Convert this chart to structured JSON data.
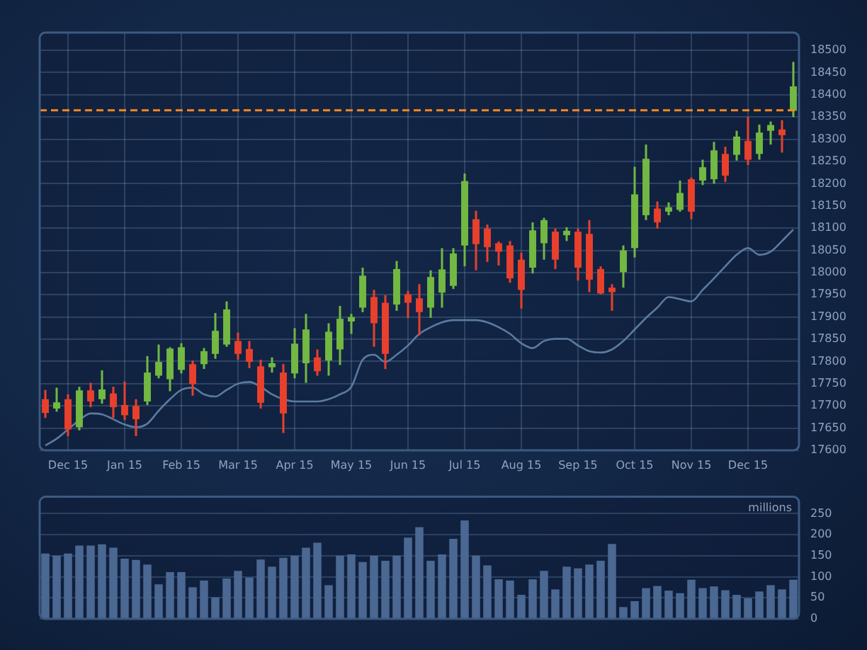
{
  "chart_data": [
    {
      "type": "candlestick",
      "categories": [
        null,
        null,
        "Dec 15",
        null,
        null,
        null,
        null,
        "Jan 15",
        null,
        null,
        null,
        null,
        "Feb 15",
        null,
        null,
        null,
        null,
        "Mar 15",
        null,
        null,
        null,
        null,
        "Apr 15",
        null,
        null,
        null,
        null,
        "May 15",
        null,
        null,
        null,
        null,
        "Jun 15",
        null,
        null,
        null,
        null,
        "Jul 15",
        null,
        null,
        null,
        null,
        "Aug 15",
        null,
        null,
        null,
        null,
        "Sep 15",
        null,
        null,
        null,
        null,
        "Oct 15",
        null,
        null,
        null,
        null,
        "Nov 15",
        null,
        null,
        null,
        null,
        "Dec 15",
        null,
        null,
        null,
        null
      ],
      "ohlc": [
        [
          17715,
          17736,
          17673,
          17684
        ],
        [
          17694,
          17741,
          17687,
          17708
        ],
        [
          17715,
          17726,
          17632,
          17647
        ],
        [
          17652,
          17743,
          17645,
          17735
        ],
        [
          17735,
          17752,
          17697,
          17710
        ],
        [
          17715,
          17780,
          17705,
          17737
        ],
        [
          17728,
          17743,
          17673,
          17697
        ],
        [
          17702,
          17755,
          17668,
          17679
        ],
        [
          17700,
          17715,
          17632,
          17670
        ],
        [
          17710,
          17812,
          17702,
          17775
        ],
        [
          17768,
          17838,
          17762,
          17799
        ],
        [
          17760,
          17832,
          17733,
          17829
        ],
        [
          17781,
          17841,
          17773,
          17832
        ],
        [
          17794,
          17802,
          17723,
          17749
        ],
        [
          17794,
          17830,
          17783,
          17823
        ],
        [
          17817,
          17909,
          17806,
          17869
        ],
        [
          17838,
          17935,
          17833,
          17917
        ],
        [
          17846,
          17865,
          17804,
          17817
        ],
        [
          17828,
          17846,
          17785,
          17799
        ],
        [
          17789,
          17804,
          17694,
          17707
        ],
        [
          17787,
          17809,
          17775,
          17796
        ],
        [
          17775,
          17794,
          17639,
          17683
        ],
        [
          17773,
          17875,
          17762,
          17840
        ],
        [
          17796,
          17907,
          17752,
          17872
        ],
        [
          17809,
          17827,
          17768,
          17778
        ],
        [
          17802,
          17886,
          17768,
          17867
        ],
        [
          17827,
          17925,
          17792,
          17896
        ],
        [
          17890,
          17907,
          17862,
          17900
        ],
        [
          17921,
          18011,
          17911,
          17993
        ],
        [
          17945,
          17961,
          17833,
          17886
        ],
        [
          17932,
          17949,
          17783,
          17817
        ],
        [
          17928,
          18026,
          17914,
          18008
        ],
        [
          17951,
          17959,
          17898,
          17932
        ],
        [
          17942,
          17974,
          17859,
          17911
        ],
        [
          17921,
          18005,
          17898,
          17990
        ],
        [
          17955,
          18055,
          17921,
          18007
        ],
        [
          17970,
          18055,
          17963,
          18043
        ],
        [
          18061,
          18223,
          18014,
          18206
        ],
        [
          18120,
          18139,
          18005,
          18064
        ],
        [
          18099,
          18108,
          18024,
          18057
        ],
        [
          18066,
          18070,
          18016,
          18047
        ],
        [
          18061,
          18071,
          17977,
          17987
        ],
        [
          18029,
          18045,
          17919,
          17961
        ],
        [
          18011,
          18113,
          17998,
          18095
        ],
        [
          18066,
          18123,
          18029,
          18118
        ],
        [
          18092,
          18099,
          18008,
          18029
        ],
        [
          18084,
          18102,
          18071,
          18094
        ],
        [
          18092,
          18099,
          17982,
          18011
        ],
        [
          18087,
          18118,
          17956,
          17984
        ],
        [
          18008,
          18014,
          17951,
          17953
        ],
        [
          17966,
          17974,
          17914,
          17956
        ],
        [
          18001,
          18061,
          17966,
          18050
        ],
        [
          18055,
          18238,
          18034,
          18176
        ],
        [
          18129,
          18288,
          18118,
          18256
        ],
        [
          18144,
          18160,
          18099,
          18113
        ],
        [
          18137,
          18158,
          18129,
          18147
        ],
        [
          18141,
          18207,
          18137,
          18179
        ],
        [
          18210,
          18214,
          18120,
          18137
        ],
        [
          18207,
          18254,
          18197,
          18237
        ],
        [
          18210,
          18294,
          18200,
          18275
        ],
        [
          18267,
          18283,
          18204,
          18218
        ],
        [
          18265,
          18319,
          18252,
          18306
        ],
        [
          18296,
          18350,
          18242,
          18254
        ],
        [
          18267,
          18333,
          18254,
          18315
        ],
        [
          18319,
          18340,
          18288,
          18332
        ],
        [
          18322,
          18343,
          18270,
          18309
        ],
        [
          18364,
          18474,
          18350,
          18419
        ]
      ],
      "colors": [
        "#e8402c",
        "#72b842",
        "#e8402c",
        "#72b842",
        "#e8402c",
        "#72b842",
        "#e8402c",
        "#e8402c",
        "#e8402c",
        "#72b842",
        "#72b842",
        "#72b842",
        "#72b842",
        "#e8402c",
        "#72b842",
        "#72b842",
        "#72b842",
        "#e8402c",
        "#e8402c",
        "#e8402c",
        "#72b842",
        "#e8402c",
        "#72b842",
        "#72b842",
        "#e8402c",
        "#72b842",
        "#72b842",
        "#72b842",
        "#72b842",
        "#e8402c",
        "#e8402c",
        "#72b842",
        "#e8402c",
        "#e8402c",
        "#72b842",
        "#72b842",
        "#72b842",
        "#72b842",
        "#e8402c",
        "#e8402c",
        "#e8402c",
        "#e8402c",
        "#e8402c",
        "#72b842",
        "#72b842",
        "#e8402c",
        "#72b842",
        "#e8402c",
        "#e8402c",
        "#e8402c",
        "#e8402c",
        "#72b842",
        "#72b842",
        "#72b842",
        "#e8402c",
        "#72b842",
        "#72b842",
        "#e8402c",
        "#72b842",
        "#72b842",
        "#e8402c",
        "#72b842",
        "#e8402c",
        "#72b842",
        "#72b842",
        "#e8402c",
        "#72b842"
      ],
      "series": [
        {
          "type": "line",
          "color": "#5b7ba0",
          "values": [
            17611,
            17626,
            17647,
            17668,
            17683,
            17681,
            17670,
            17658,
            17652,
            17660,
            17689,
            17715,
            17736,
            17741,
            17726,
            17721,
            17736,
            17750,
            17754,
            17743,
            17726,
            17715,
            17710,
            17710,
            17710,
            17715,
            17726,
            17743,
            17804,
            17815,
            17799,
            17815,
            17836,
            17862,
            17877,
            17888,
            17893,
            17893,
            17893,
            17888,
            17877,
            17862,
            17841,
            17830,
            17846,
            17851,
            17851,
            17836,
            17823,
            17820,
            17827,
            17846,
            17872,
            17898,
            17921,
            17945,
            17940,
            17935,
            17961,
            17987,
            18014,
            18040,
            18055,
            18040,
            18047,
            18071,
            18097
          ]
        }
      ],
      "ylim": [
        17600,
        18540
      ],
      "yticks": [
        17600,
        17650,
        17700,
        17750,
        17800,
        17850,
        17900,
        17950,
        18000,
        18050,
        18100,
        18150,
        18200,
        18250,
        18300,
        18350,
        18400,
        18450,
        18500
      ],
      "grid": true,
      "ref_lines": [
        {
          "axis": "y",
          "value": 18365,
          "color": "#f5871f",
          "line_style": "dashed"
        }
      ]
    },
    {
      "type": "bar",
      "categories": [
        null,
        null,
        null,
        null,
        null,
        null,
        null,
        null,
        null,
        null,
        null,
        null,
        null,
        null,
        null,
        null,
        null,
        null,
        null,
        null,
        null,
        null,
        null,
        null,
        null,
        null,
        null,
        null,
        null,
        null,
        null,
        null,
        null,
        null,
        null,
        null,
        null,
        null,
        null,
        null,
        null,
        null,
        null,
        null,
        null,
        null,
        null,
        null,
        null,
        null,
        null,
        null,
        null,
        null,
        null,
        null,
        null,
        null,
        null,
        null,
        null,
        null,
        null,
        null,
        null,
        null,
        null
      ],
      "values": [
        155,
        150,
        155,
        174,
        174,
        177,
        169,
        143,
        140,
        129,
        82,
        111,
        111,
        75,
        91,
        51,
        96,
        114,
        98,
        141,
        124,
        145,
        150,
        169,
        181,
        80,
        150,
        153,
        135,
        150,
        138,
        150,
        193,
        218,
        138,
        153,
        190,
        234,
        150,
        127,
        94,
        91,
        57,
        94,
        114,
        70,
        124,
        120,
        129,
        138,
        178,
        28,
        42,
        73,
        78,
        67,
        61,
        93,
        73,
        77,
        68,
        57,
        49,
        65,
        80,
        70,
        93
      ],
      "color": "#4a6892",
      "ylabel": "millions",
      "ylim": [
        0,
        290
      ],
      "yticks": [
        0,
        50,
        100,
        150,
        200,
        250
      ],
      "grid": "y",
      "tick_labels": "y"
    }
  ]
}
